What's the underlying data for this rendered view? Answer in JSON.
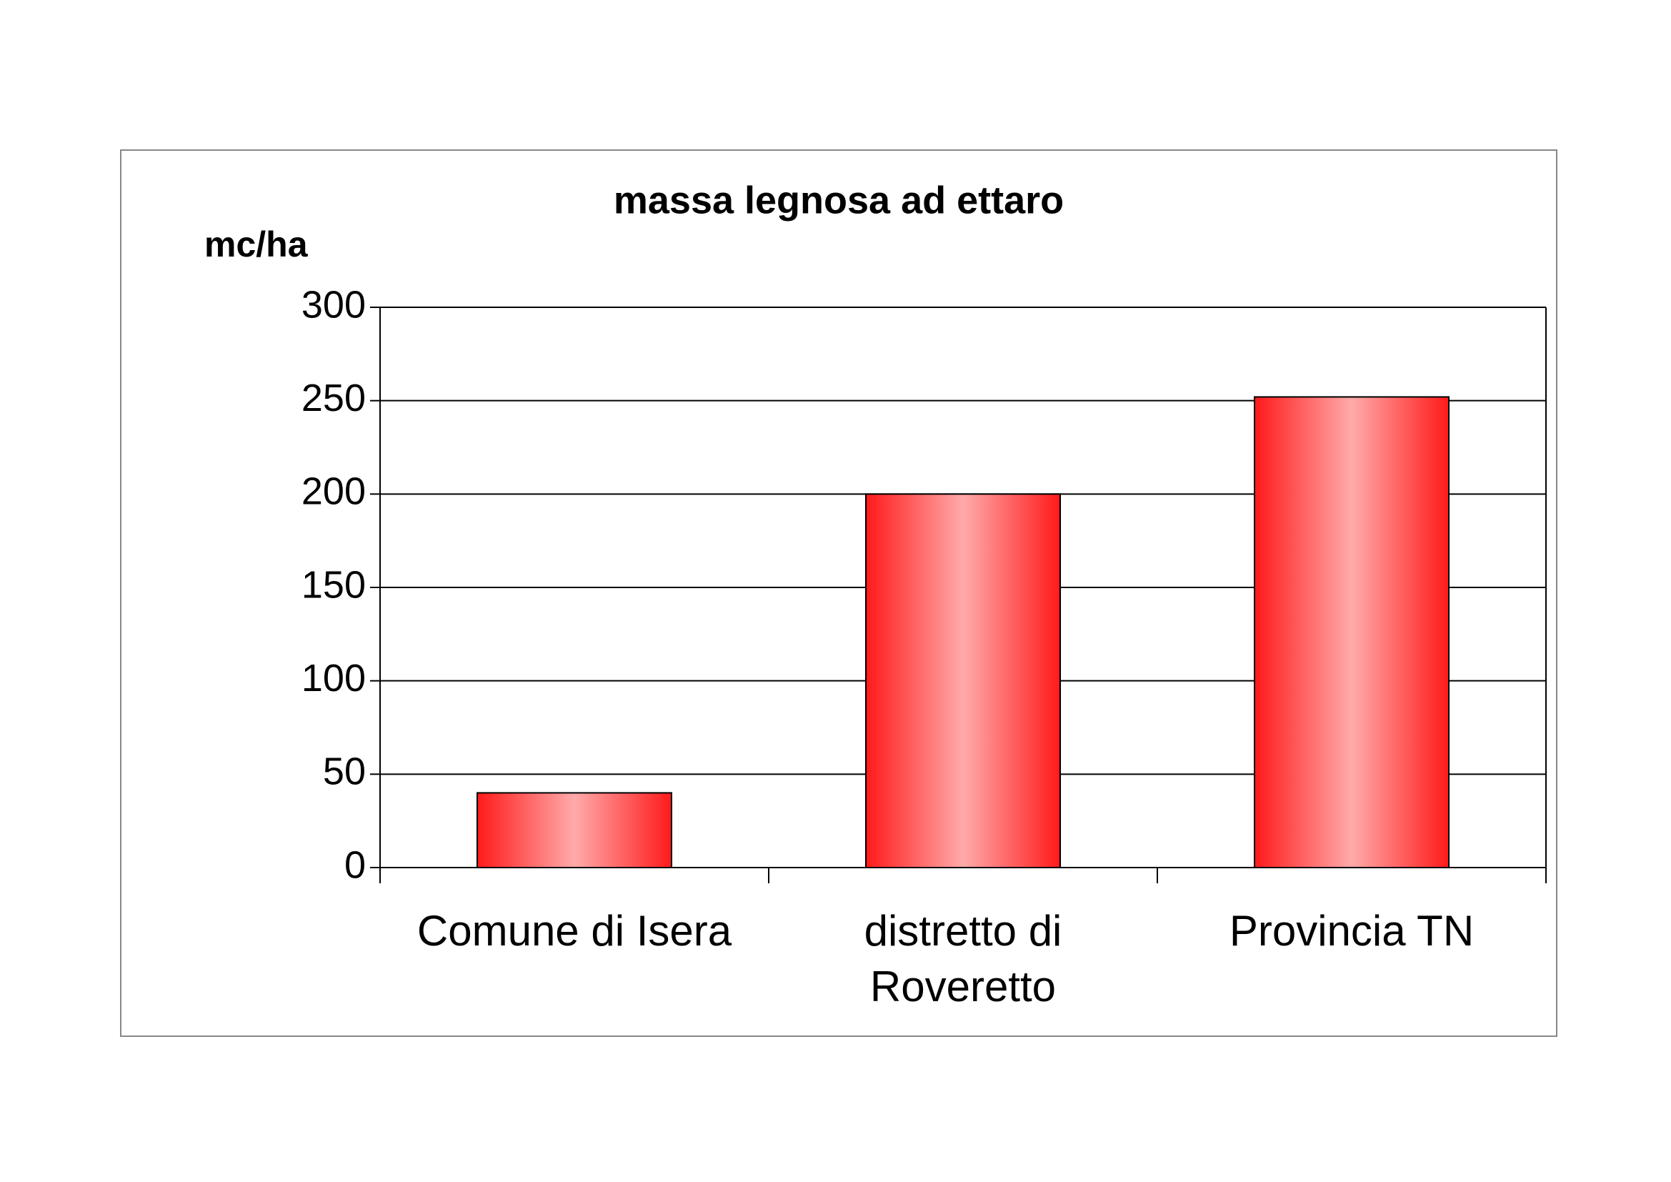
{
  "chart_data": {
    "type": "bar",
    "title": "massa legnosa ad ettaro",
    "y_label": "mc/ha",
    "categories": [
      "Comune di Isera",
      "distretto di\nRoveretto",
      "Provincia TN"
    ],
    "values": [
      40,
      200,
      252
    ],
    "color": "#ff1a1a",
    "ylim": [
      0,
      300
    ],
    "yticks": [
      0,
      50,
      100,
      150,
      200,
      250,
      300
    ],
    "grid": true
  }
}
